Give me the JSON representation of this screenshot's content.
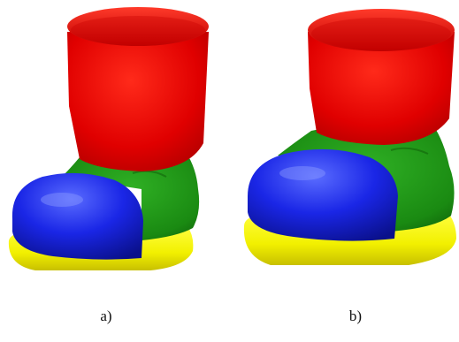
{
  "figure": {
    "panels": [
      {
        "caption": "a)"
      },
      {
        "caption": "b)"
      }
    ],
    "colors": {
      "shaft": "#e00000",
      "upper": "#1a8a12",
      "toe_cap": "#1a26e6",
      "sole": "#f2f000"
    }
  }
}
